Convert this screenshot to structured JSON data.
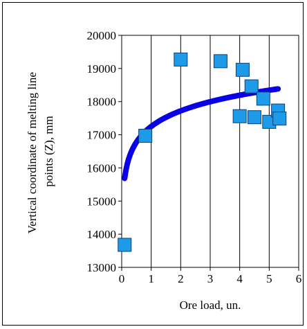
{
  "chart_data": {
    "type": "scatter",
    "title": "",
    "xlabel": "Ore load, un.",
    "ylabel_lines": [
      "Vertical coordinate of melting line",
      "points (Z), mm"
    ],
    "xlim": [
      0,
      6
    ],
    "ylim": [
      13000,
      20000
    ],
    "x_ticks": [
      0,
      1,
      2,
      3,
      4,
      5,
      6
    ],
    "y_ticks": [
      13000,
      14000,
      15000,
      16000,
      17000,
      18000,
      19000,
      20000
    ],
    "x_tick_labels": [
      "0",
      "1",
      "2",
      "3",
      "4",
      "5",
      "6"
    ],
    "y_tick_labels": [
      "13000",
      "14000",
      "15000",
      "16000",
      "17000",
      "18000",
      "19000",
      "20000"
    ],
    "grid": "vertical",
    "marker_color": "#1E9BE8",
    "trend_color": "#0A00E6",
    "points": [
      {
        "x": 0.1,
        "y": 13680
      },
      {
        "x": 0.8,
        "y": 16970
      },
      {
        "x": 2.0,
        "y": 19270
      },
      {
        "x": 3.35,
        "y": 19220
      },
      {
        "x": 4.1,
        "y": 18960
      },
      {
        "x": 4.4,
        "y": 18460
      },
      {
        "x": 4.8,
        "y": 18090
      },
      {
        "x": 4.0,
        "y": 17560
      },
      {
        "x": 4.5,
        "y": 17530
      },
      {
        "x": 5.0,
        "y": 17390
      },
      {
        "x": 5.3,
        "y": 17730
      },
      {
        "x": 5.35,
        "y": 17490
      }
    ],
    "trend": {
      "type": "logarithmic",
      "a": 17250,
      "b": 680,
      "x_range": [
        0.1,
        5.3
      ]
    }
  }
}
